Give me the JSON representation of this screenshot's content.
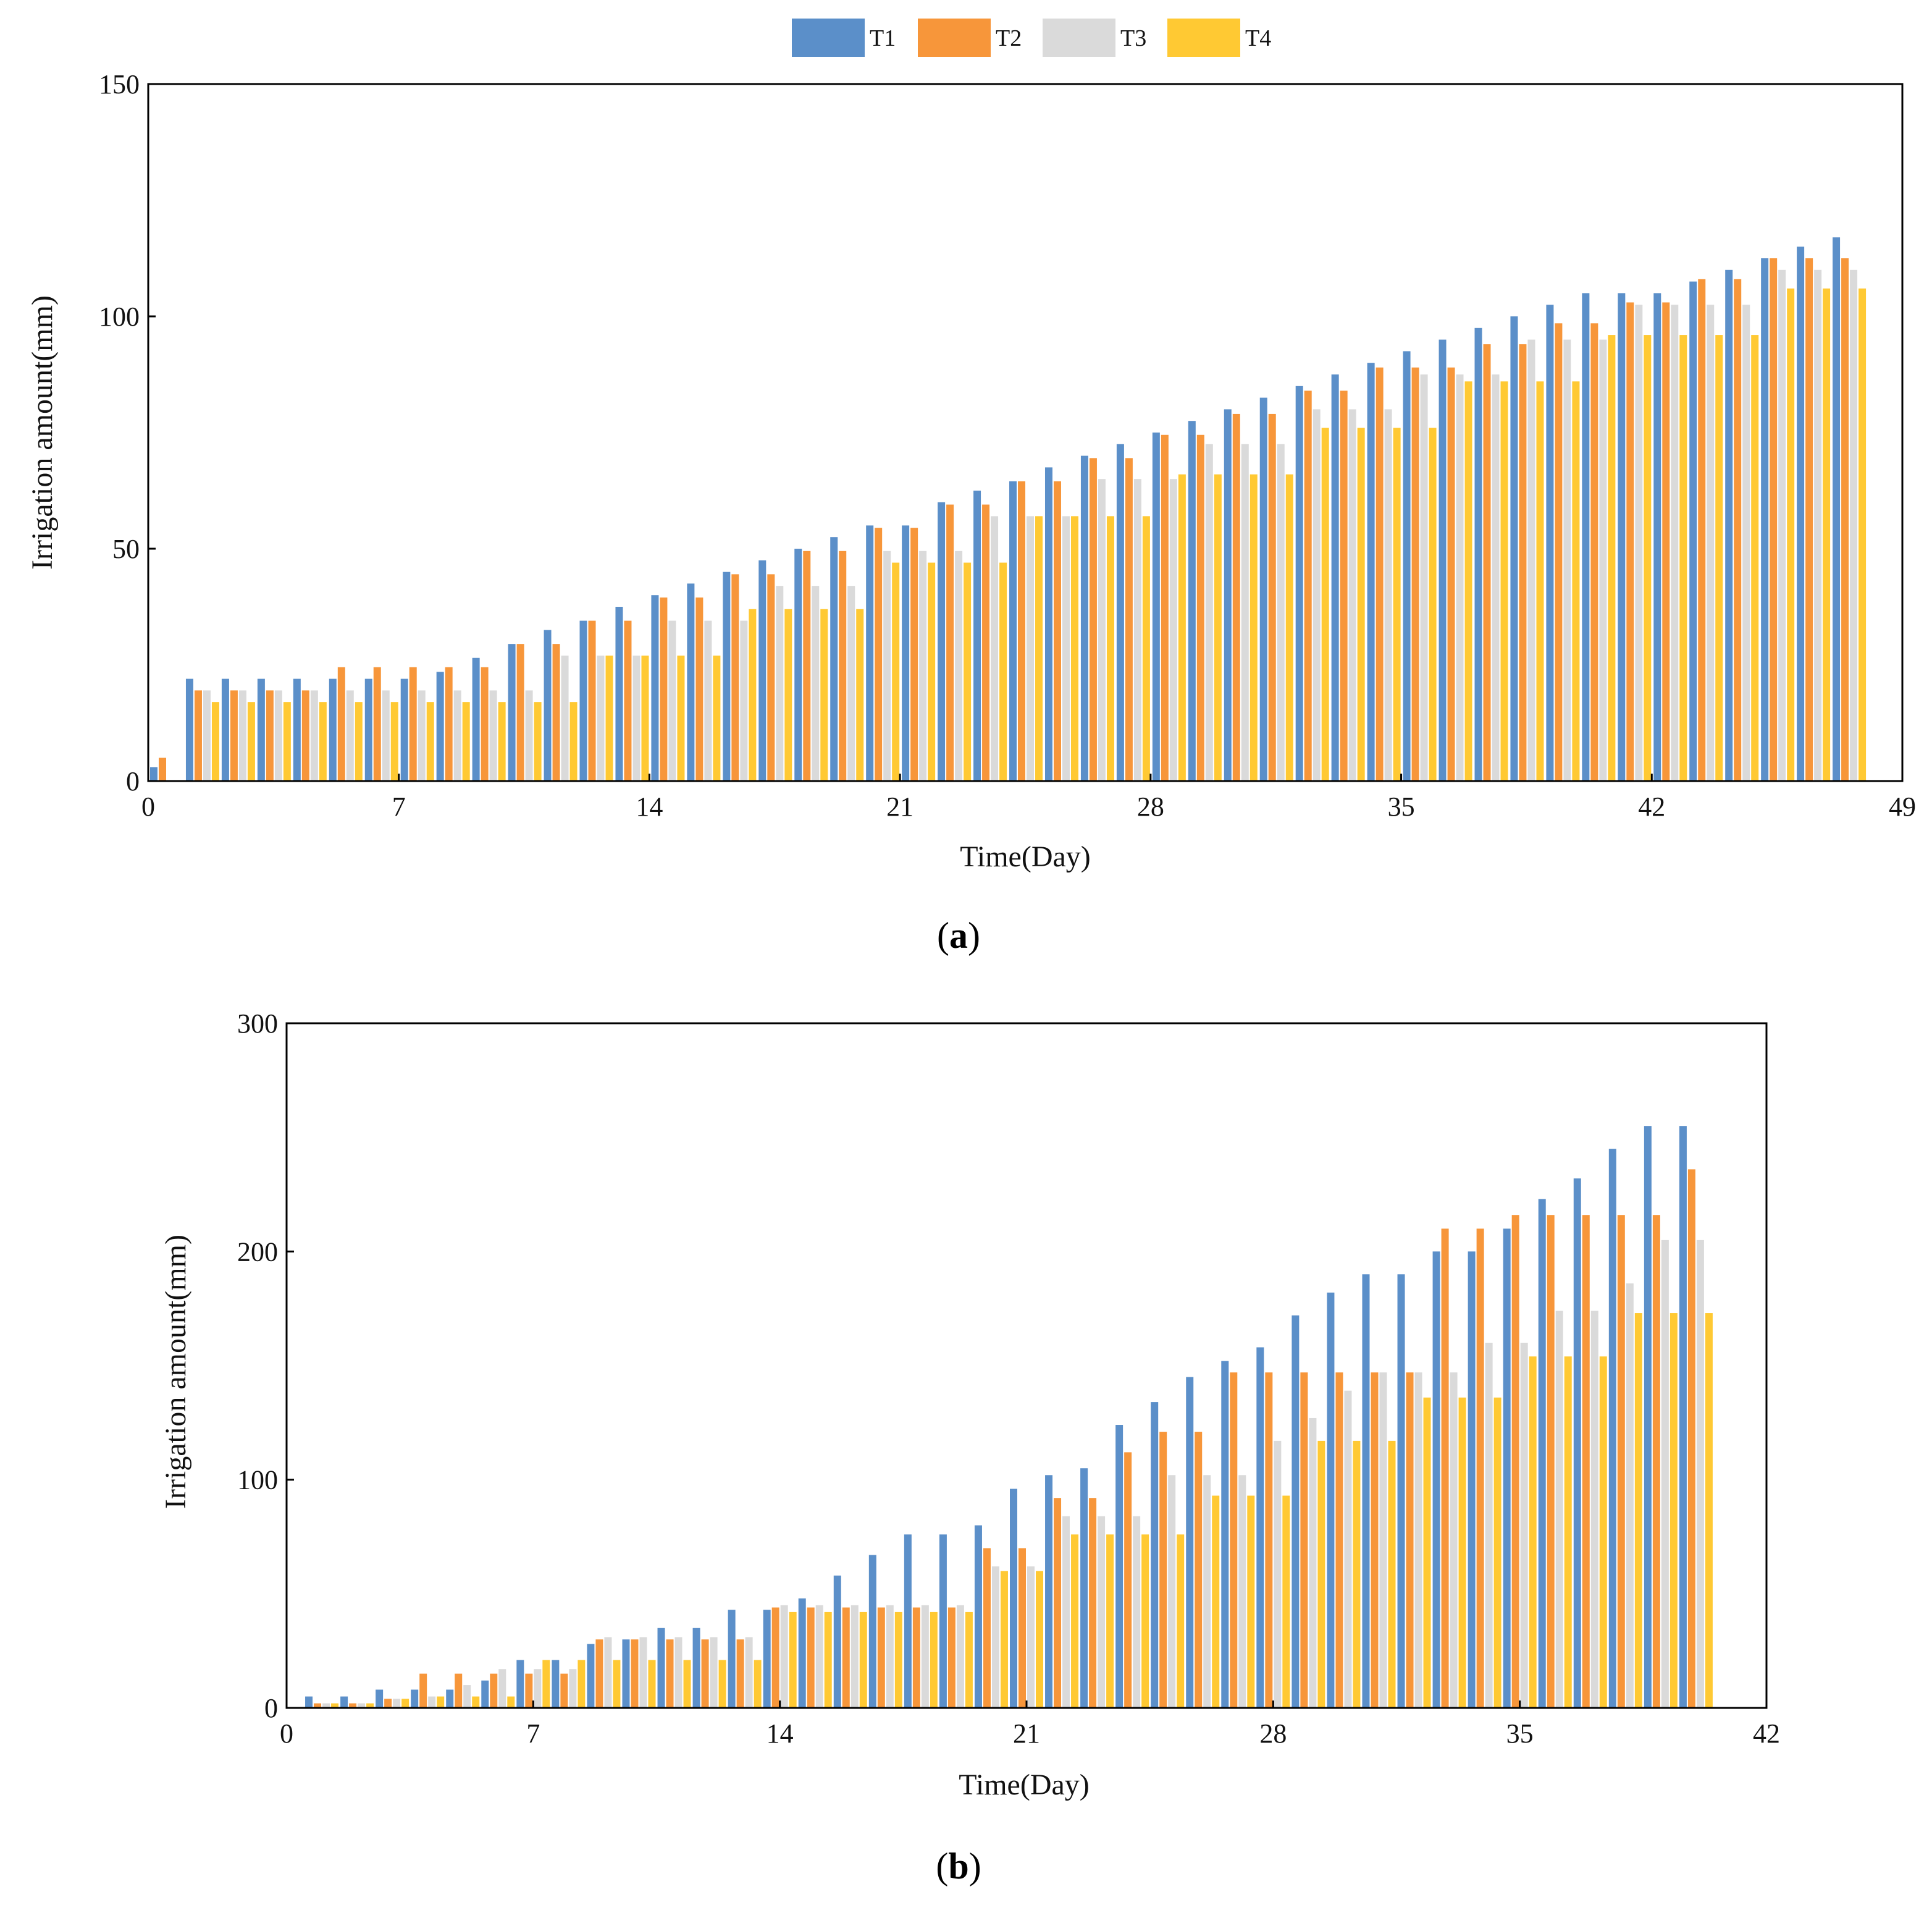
{
  "legend": {
    "items": [
      {
        "label": "T1",
        "color": "#5B8FC9"
      },
      {
        "label": "T2",
        "color": "#F7963A"
      },
      {
        "label": "T3",
        "color": "#DADADA"
      },
      {
        "label": "T4",
        "color": "#FFC933"
      }
    ]
  },
  "chart_data": [
    {
      "type": "bar",
      "panel_label": "a",
      "xlabel": "Time(Day)",
      "ylabel": "Irrigation amount(mm)",
      "xlim": [
        0,
        49
      ],
      "ylim": [
        0,
        150
      ],
      "xticks": [
        0,
        7,
        14,
        21,
        28,
        35,
        42,
        49
      ],
      "yticks": [
        0,
        50,
        100,
        150
      ],
      "x": [
        0,
        1,
        2,
        3,
        4,
        5,
        6,
        7,
        8,
        9,
        10,
        11,
        12,
        13,
        14,
        15,
        16,
        17,
        18,
        19,
        20,
        21,
        22,
        23,
        24,
        25,
        26,
        27,
        28,
        29,
        30,
        31,
        32,
        33,
        34,
        35,
        36,
        37,
        38,
        39,
        40,
        41,
        42,
        43,
        44,
        45,
        46,
        47
      ],
      "series": [
        {
          "name": "T1",
          "values": [
            3,
            22,
            22,
            22,
            22,
            22,
            22,
            22,
            23.5,
            26.5,
            29.5,
            32.5,
            34.5,
            37.5,
            40,
            42.5,
            45,
            47.5,
            50,
            52.5,
            55,
            55,
            60,
            62.5,
            64.5,
            67.5,
            70,
            72.5,
            75,
            77.5,
            80,
            82.5,
            85,
            87.5,
            90,
            92.5,
            95,
            97.5,
            100,
            102.5,
            105,
            105,
            105,
            107.5,
            110,
            112.5,
            115,
            117
          ]
        },
        {
          "name": "T2",
          "values": [
            5,
            19.5,
            19.5,
            19.5,
            19.5,
            24.5,
            24.5,
            24.5,
            24.5,
            24.5,
            29.5,
            29.5,
            34.5,
            34.5,
            39.5,
            39.5,
            44.5,
            44.5,
            49.5,
            49.5,
            54.5,
            54.5,
            59.5,
            59.5,
            64.5,
            64.5,
            69.5,
            69.5,
            74.5,
            74.5,
            79,
            79,
            84,
            84,
            89,
            89,
            89,
            94,
            94,
            98.5,
            98.5,
            103,
            103,
            108,
            108,
            112.5,
            112.5,
            112.5
          ]
        },
        {
          "name": "T3",
          "values": [
            0,
            19.5,
            19.5,
            19.5,
            19.5,
            19.5,
            19.5,
            19.5,
            19.5,
            19.5,
            19.5,
            27,
            27,
            27,
            34.5,
            34.5,
            34.5,
            42,
            42,
            42,
            49.5,
            49.5,
            49.5,
            57,
            57,
            57,
            65,
            65,
            65,
            72.5,
            72.5,
            72.5,
            80,
            80,
            80,
            87.5,
            87.5,
            87.5,
            95,
            95,
            95,
            102.5,
            102.5,
            102.5,
            102.5,
            110,
            110,
            110
          ]
        },
        {
          "name": "T4",
          "values": [
            0,
            17,
            17,
            17,
            17,
            17,
            17,
            17,
            17,
            17,
            17,
            17,
            27,
            27,
            27,
            27,
            37,
            37,
            37,
            37,
            47,
            47,
            47,
            47,
            57,
            57,
            57,
            57,
            66,
            66,
            66,
            66,
            76,
            76,
            76,
            76,
            86,
            86,
            86,
            86,
            96,
            96,
            96,
            96,
            96,
            106,
            106,
            106
          ]
        }
      ]
    },
    {
      "type": "bar",
      "panel_label": "b",
      "xlabel": "Time(Day)",
      "ylabel": "Irrigation amount(mm)",
      "xlim": [
        0,
        42
      ],
      "ylim": [
        0,
        300
      ],
      "xticks": [
        0,
        7,
        14,
        21,
        28,
        35,
        42
      ],
      "yticks": [
        0,
        100,
        200,
        300
      ],
      "x": [
        1,
        2,
        3,
        4,
        5,
        6,
        7,
        8,
        9,
        10,
        11,
        12,
        13,
        14,
        15,
        16,
        17,
        18,
        19,
        20,
        21,
        22,
        23,
        24,
        25,
        26,
        27,
        28,
        29,
        30,
        31,
        32,
        33,
        34,
        35,
        36,
        37,
        38,
        39,
        40
      ],
      "series": [
        {
          "name": "T1",
          "values": [
            5,
            5,
            8,
            8,
            8,
            12,
            21,
            21,
            28,
            30,
            35,
            35,
            43,
            43,
            48,
            58,
            67,
            76,
            76,
            80,
            96,
            102,
            105,
            124,
            134,
            145,
            152,
            158,
            172,
            182,
            190,
            190,
            200,
            200,
            210,
            223,
            232,
            245,
            255,
            255
          ]
        },
        {
          "name": "T2",
          "values": [
            2,
            2,
            4,
            15,
            15,
            15,
            15,
            15,
            30,
            30,
            30,
            30,
            30,
            44,
            44,
            44,
            44,
            44,
            44,
            70,
            70,
            92,
            92,
            112,
            121,
            121,
            147,
            147,
            147,
            147,
            147,
            147,
            210,
            210,
            216,
            216,
            216,
            216,
            216,
            236
          ]
        },
        {
          "name": "T3",
          "values": [
            2,
            2,
            4,
            5,
            10,
            17,
            17,
            17,
            31,
            31,
            31,
            31,
            31,
            45,
            45,
            45,
            45,
            45,
            45,
            62,
            62,
            84,
            84,
            84,
            102,
            102,
            102,
            117,
            127,
            139,
            147,
            147,
            147,
            160,
            160,
            174,
            174,
            186,
            205,
            205
          ]
        },
        {
          "name": "T4",
          "values": [
            2,
            2,
            4,
            5,
            5,
            5,
            21,
            21,
            21,
            21,
            21,
            21,
            21,
            42,
            42,
            42,
            42,
            42,
            42,
            60,
            60,
            76,
            76,
            76,
            76,
            93,
            93,
            93,
            117,
            117,
            117,
            136,
            136,
            136,
            154,
            154,
            154,
            173,
            173,
            173
          ]
        }
      ]
    }
  ]
}
